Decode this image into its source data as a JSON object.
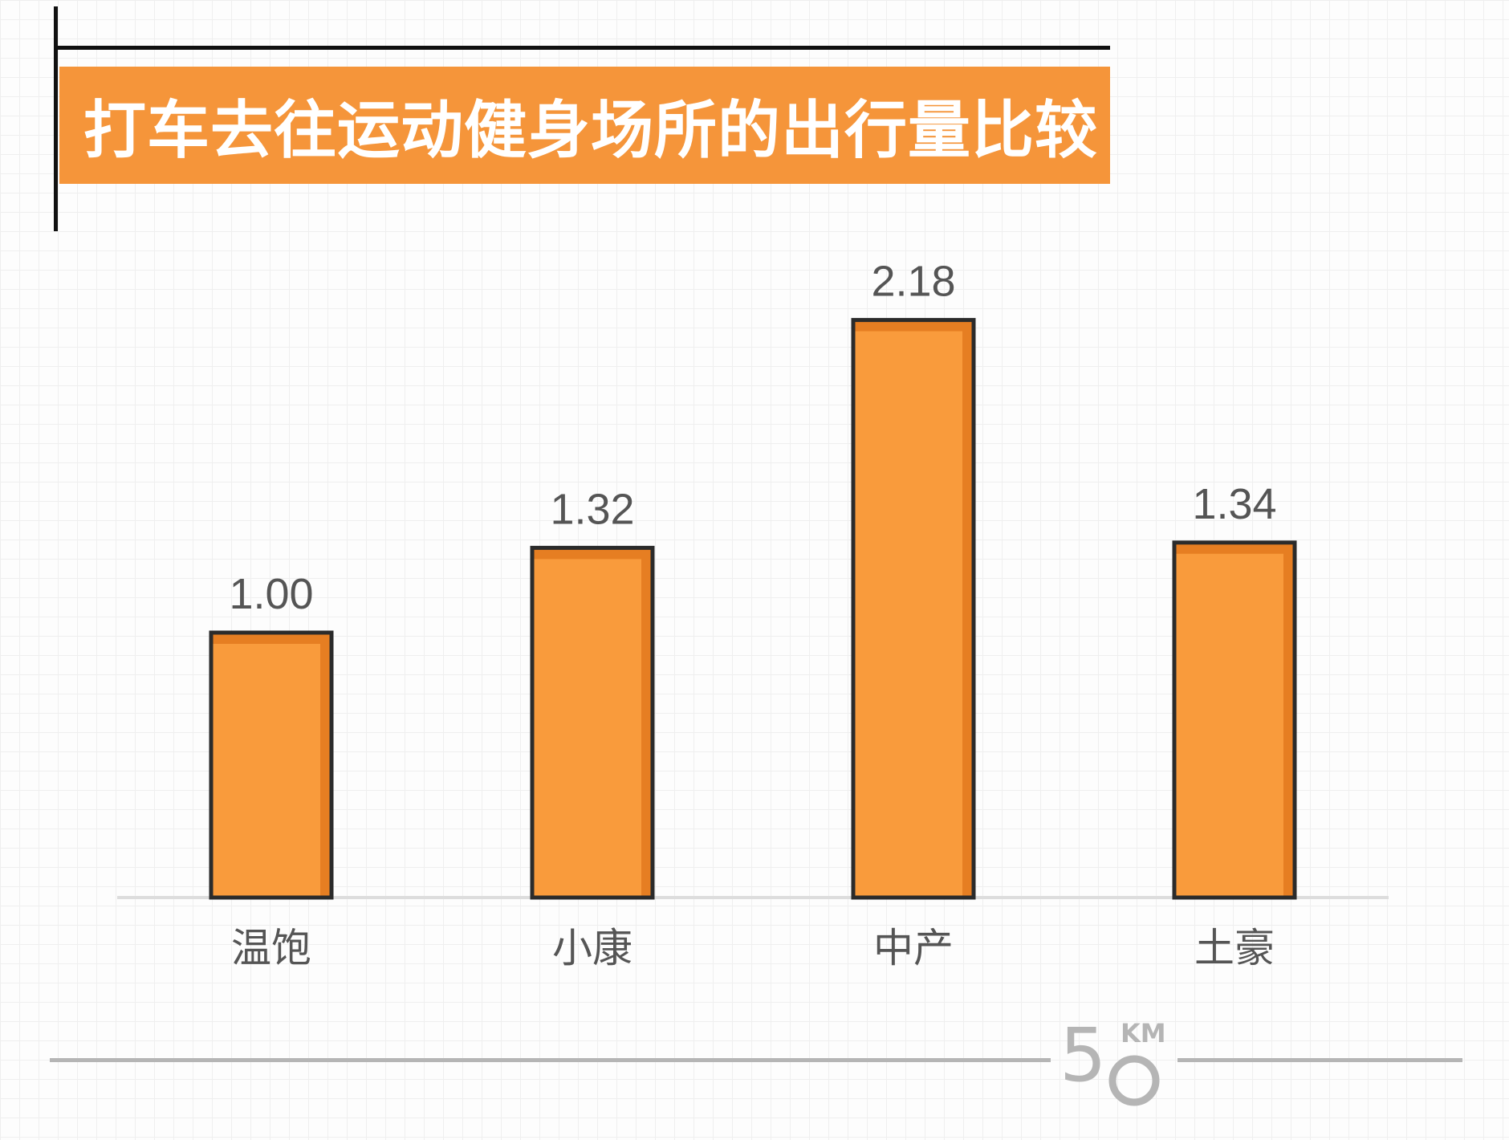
{
  "title": "打车去往运动健身场所的出行量比较",
  "chart_data": {
    "type": "bar",
    "title": "打车去往运动健身场所的出行量比较",
    "categories": [
      "温饱",
      "小康",
      "中产",
      "土豪"
    ],
    "values": [
      1.0,
      1.32,
      2.18,
      1.34
    ],
    "value_labels": [
      "1.00",
      "1.32",
      "2.18",
      "1.34"
    ],
    "xlabel": "",
    "ylabel": "",
    "ylim": [
      0,
      2.5
    ],
    "grid": false,
    "legend": "none",
    "colors": {
      "bar_fill": "#f99b3c",
      "bar_shade": "#e67e22",
      "bar_stroke": "#2b2b2b",
      "label": "#555555",
      "baseline": "#dddddd"
    }
  },
  "logo": {
    "number": "5",
    "unit": "KM",
    "color": "#b5b5b5"
  }
}
